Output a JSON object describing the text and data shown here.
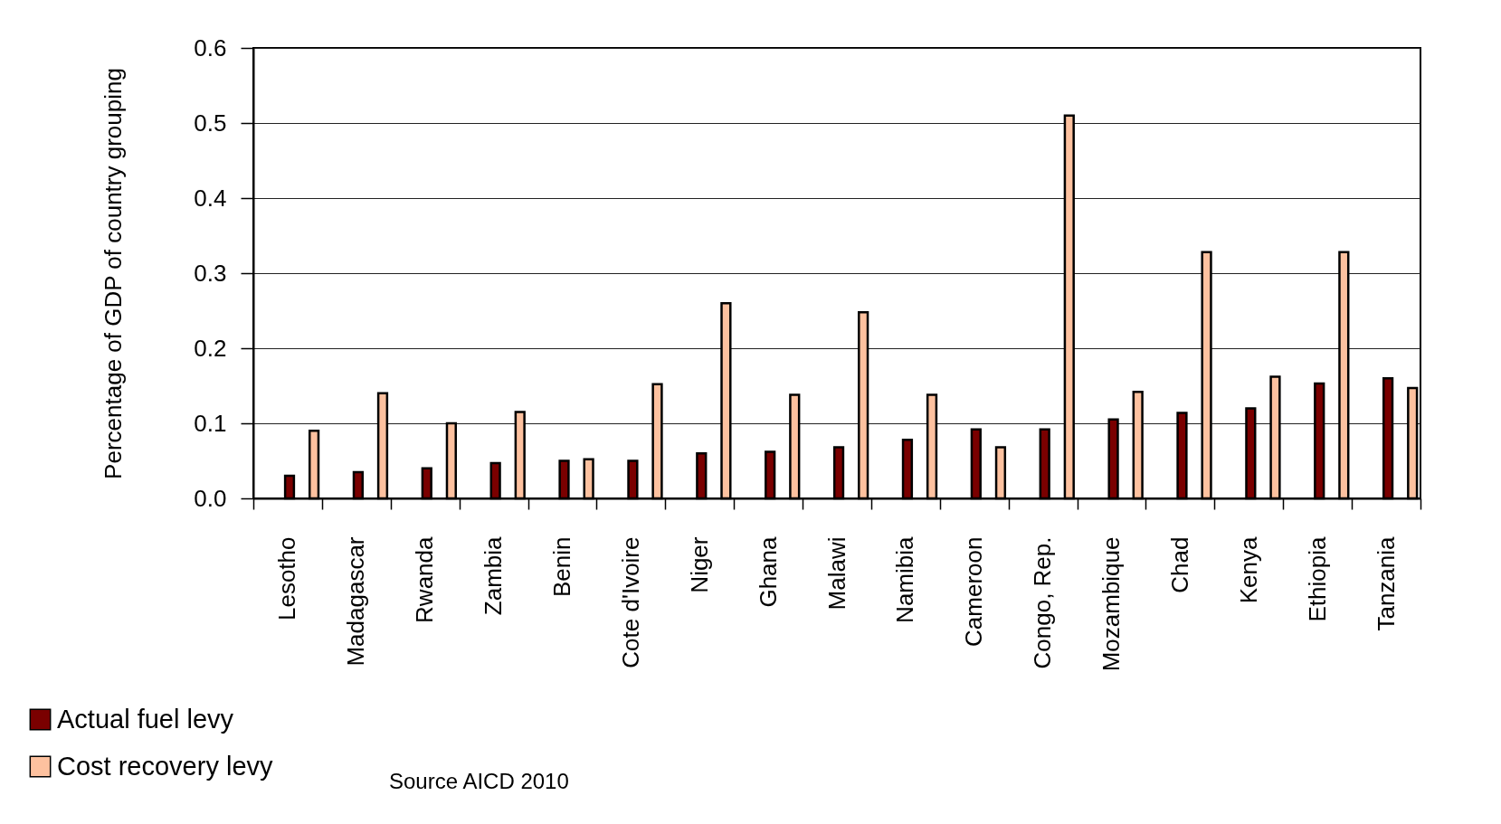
{
  "chart_data": {
    "type": "bar",
    "ylabel": "Percentage of GDP of country grouping",
    "categories": [
      "Lesotho",
      "Madagascar",
      "Rwanda",
      "Zambia",
      "Benin",
      "Cote d'Ivoire",
      "Niger",
      "Ghana",
      "Malawi",
      "Namibia",
      "Cameroon",
      "Congo, Rep.",
      "Mozambique",
      "Chad",
      "Kenya",
      "Ethiopia",
      "Tanzania"
    ],
    "series": [
      {
        "name": "Actual fuel levy",
        "color": "#7a0000",
        "values": [
          0.03,
          0.035,
          0.04,
          0.047,
          0.05,
          0.05,
          0.06,
          0.062,
          0.068,
          0.078,
          0.092,
          0.092,
          0.105,
          0.114,
          0.12,
          0.153,
          0.16
        ]
      },
      {
        "name": "Cost recovery levy",
        "color": "#fdc19f",
        "values": [
          0.09,
          0.14,
          0.1,
          0.115,
          0.052,
          0.152,
          0.26,
          0.138,
          0.248,
          0.138,
          0.068,
          0.51,
          0.142,
          0.328,
          0.162,
          0.328,
          0.147
        ]
      }
    ],
    "ylim": [
      0,
      0.6
    ],
    "yticks": [
      {
        "value": 0,
        "label": "0.0"
      },
      0.1,
      0.2,
      0.3,
      0.4,
      0.5,
      0.6
    ],
    "grid": "y",
    "legend": "bottom left",
    "annotations": [
      "Source AICD 2010"
    ]
  }
}
